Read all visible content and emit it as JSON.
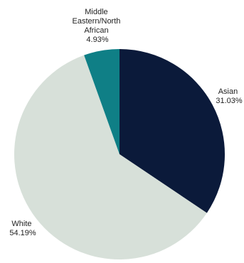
{
  "chart_data": {
    "type": "pie",
    "title": "",
    "slices": [
      {
        "name": "Asian",
        "value": 31.03,
        "value_label": "31.03%",
        "color": "#0b1a3a"
      },
      {
        "name": "White",
        "value": 54.19,
        "value_label": "54.19%",
        "color": "#d7e0d9"
      },
      {
        "name": "Middle Eastern/North African",
        "name_lines": [
          "Middle",
          "Eastern/North",
          "African"
        ],
        "value": 4.93,
        "value_label": "4.93%",
        "color": "#0f7f86"
      }
    ],
    "start": "12 o'clock",
    "direction": "clockwise",
    "legend": "none"
  }
}
